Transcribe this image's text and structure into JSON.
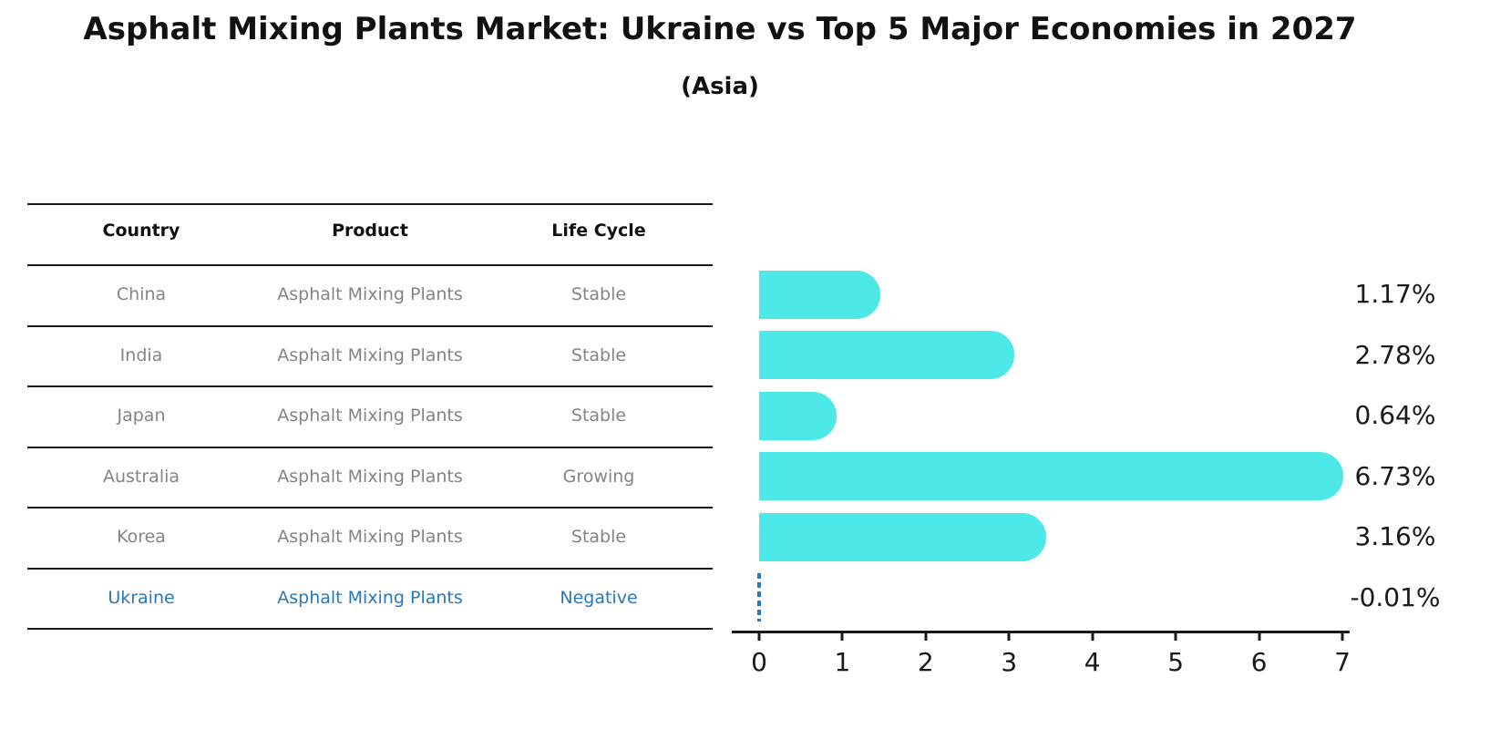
{
  "header": {
    "title": "Asphalt Mixing Plants Market: Ukraine vs Top 5 Major Economies in 2027",
    "subtitle": "(Asia)"
  },
  "table": {
    "columns": [
      "Country",
      "Product",
      "Life Cycle"
    ],
    "rows": [
      {
        "country": "China",
        "product": "Asphalt Mixing Plants",
        "life_cycle": "Stable",
        "highlight": false
      },
      {
        "country": "India",
        "product": "Asphalt Mixing Plants",
        "life_cycle": "Stable",
        "highlight": false
      },
      {
        "country": "Japan",
        "product": "Asphalt Mixing Plants",
        "life_cycle": "Stable",
        "highlight": false
      },
      {
        "country": "Australia",
        "product": "Asphalt Mixing Plants",
        "life_cycle": "Growing",
        "highlight": false
      },
      {
        "country": "Korea",
        "product": "Asphalt Mixing Plants",
        "life_cycle": "Stable",
        "highlight": false
      },
      {
        "country": "Ukraine",
        "product": "Asphalt Mixing Plants",
        "life_cycle": "Negative",
        "highlight": true
      }
    ]
  },
  "chart_data": {
    "type": "bar",
    "orientation": "horizontal",
    "title": "Asphalt Mixing Plants Market: Ukraine vs Top 5 Major Economies in 2027",
    "subtitle": "(Asia)",
    "categories": [
      "China",
      "India",
      "Japan",
      "Australia",
      "Korea",
      "Ukraine"
    ],
    "values": [
      1.17,
      2.78,
      0.64,
      6.73,
      3.16,
      -0.01
    ],
    "value_labels": [
      "1.17%",
      "2.78%",
      "0.64%",
      "6.73%",
      "3.16%",
      "-0.01%"
    ],
    "xlim": [
      0,
      7
    ],
    "x_ticks": [
      "0",
      "1",
      "2",
      "3",
      "4",
      "5",
      "6",
      "7"
    ],
    "grid": false,
    "legend": false,
    "value_label_position": "right",
    "bar_color": "#4DE9E9",
    "zero_line_color": "#2579BE",
    "highlight_text_color": "#2579BE",
    "table_text_color": "#848484"
  }
}
